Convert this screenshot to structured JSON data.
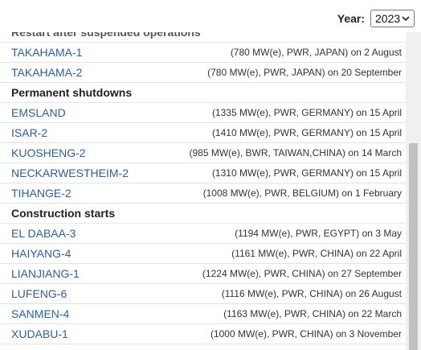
{
  "year_filter": {
    "label": "Year:",
    "selected": "2023"
  },
  "sections": [
    {
      "heading": "Restart after suspended operations",
      "reactors": [
        {
          "name": "TAKAHAMA-1",
          "detail": "(780 MW(e), PWR, JAPAN) on 2 August"
        },
        {
          "name": "TAKAHAMA-2",
          "detail": "(780 MW(e), PWR, JAPAN) on 20 September"
        }
      ]
    },
    {
      "heading": "Permanent shutdowns",
      "reactors": [
        {
          "name": "EMSLAND",
          "detail": "(1335 MW(e), PWR, GERMANY) on 15 April"
        },
        {
          "name": "ISAR-2",
          "detail": "(1410 MW(e), PWR, GERMANY) on 15 April"
        },
        {
          "name": "KUOSHENG-2",
          "detail": "(985 MW(e), BWR, TAIWAN,CHINA) on 14 March"
        },
        {
          "name": "NECKARWESTHEIM-2",
          "detail": "(1310 MW(e), PWR, GERMANY) on 15 April"
        },
        {
          "name": "TIHANGE-2",
          "detail": "(1008 MW(e), PWR, BELGIUM) on 1 February"
        }
      ]
    },
    {
      "heading": "Construction starts",
      "reactors": [
        {
          "name": "EL DABAA-3",
          "detail": "(1194 MW(e), PWR, EGYPT) on 3 May"
        },
        {
          "name": "HAIYANG-4",
          "detail": "(1161 MW(e), PWR, CHINA) on 22 April"
        },
        {
          "name": "LIANJIANG-1",
          "detail": "(1224 MW(e), PWR, CHINA) on 27 September"
        },
        {
          "name": "LUFENG-6",
          "detail": "(1116 MW(e), PWR, CHINA) on 26 August"
        },
        {
          "name": "SANMEN-4",
          "detail": "(1163 MW(e), PWR, CHINA) on 22 March"
        },
        {
          "name": "XUDABU-1",
          "detail": "(1000 MW(e), PWR, CHINA) on 3 November"
        }
      ]
    }
  ]
}
